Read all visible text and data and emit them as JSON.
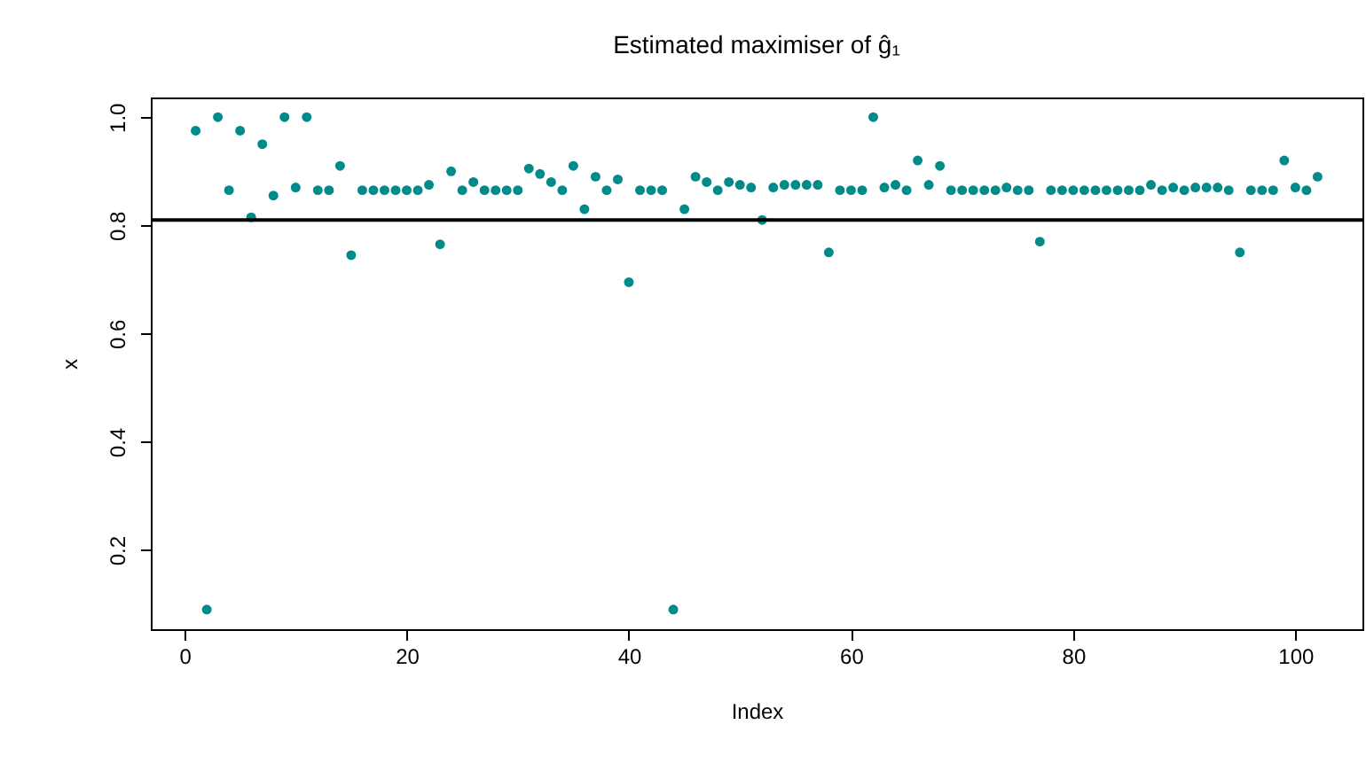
{
  "chart_data": {
    "type": "scatter",
    "title": "Estimated maximiser of ĝ₁",
    "xlabel": "Index",
    "ylabel": "x",
    "x": [
      1,
      2,
      3,
      4,
      5,
      6,
      7,
      8,
      9,
      10,
      11,
      12,
      13,
      14,
      15,
      16,
      17,
      18,
      19,
      20,
      21,
      22,
      23,
      24,
      25,
      26,
      27,
      28,
      29,
      30,
      31,
      32,
      33,
      34,
      35,
      36,
      37,
      38,
      39,
      40,
      41,
      42,
      43,
      44,
      45,
      46,
      47,
      48,
      49,
      50,
      51,
      52,
      53,
      54,
      55,
      56,
      57,
      58,
      59,
      60,
      61,
      62,
      63,
      64,
      65,
      66,
      67,
      68,
      69,
      70,
      71,
      72,
      73,
      74,
      75,
      76,
      77,
      78,
      79,
      80,
      81,
      82,
      83,
      84,
      85,
      86,
      87,
      88,
      89,
      90,
      91,
      92,
      93,
      94,
      95,
      96,
      97,
      98,
      99,
      100,
      101,
      102
    ],
    "series": [
      {
        "color": "#008b8b",
        "values": [
          0.975,
          0.09,
          1.0,
          0.865,
          0.975,
          0.815,
          0.95,
          0.855,
          1.0,
          0.87,
          1.0,
          0.865,
          0.865,
          0.91,
          0.745,
          0.865,
          0.865,
          0.865,
          0.865,
          0.865,
          0.865,
          0.875,
          0.765,
          0.9,
          0.865,
          0.88,
          0.865,
          0.865,
          0.865,
          0.865,
          0.905,
          0.895,
          0.88,
          0.865,
          0.91,
          0.83,
          0.89,
          0.865,
          0.885,
          0.695,
          0.865,
          0.865,
          0.865,
          0.09,
          0.83,
          0.89,
          0.88,
          0.865,
          0.88,
          0.875,
          0.87,
          0.81,
          0.87,
          0.875,
          0.875,
          0.875,
          0.875,
          0.75,
          0.865,
          0.865,
          0.865,
          1.0,
          0.87,
          0.875,
          0.865,
          0.92,
          0.875,
          0.91,
          0.865,
          0.865,
          0.865,
          0.865,
          0.865,
          0.87,
          0.865,
          0.865,
          0.77,
          0.865,
          0.865,
          0.865,
          0.865,
          0.865,
          0.865,
          0.865,
          0.865,
          0.865,
          0.875,
          0.865,
          0.87,
          0.865,
          0.87,
          0.87,
          0.87,
          0.865,
          0.75,
          0.865,
          0.865,
          0.865,
          0.92,
          0.87,
          0.865,
          0.89
        ]
      }
    ],
    "marker": "circle",
    "xlim": [
      -3.04,
      106.04
    ],
    "xticks": [
      0,
      20,
      40,
      60,
      80,
      100
    ],
    "ylim": [
      0.0536,
      1.0364
    ],
    "yticks": [
      0.2,
      0.4,
      0.6,
      0.8,
      {
        "value": 1,
        "label": "1.0"
      }
    ],
    "ref_lines": [
      {
        "axis": "y",
        "value": 0.81,
        "color": "#000000"
      }
    ],
    "grid": false,
    "legend": false
  }
}
